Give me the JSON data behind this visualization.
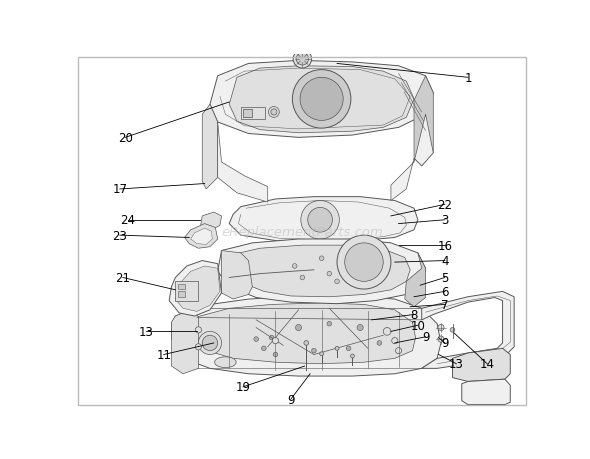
{
  "background_color": "#ffffff",
  "border_color": "#bbbbbb",
  "watermark_text": "eReplacementParts.com",
  "watermark_color": "#bbbbbb",
  "watermark_alpha": 0.55,
  "line_color": "#555555",
  "thin_line": 0.5,
  "med_line": 0.7,
  "label_fontsize": 8.5,
  "label_color": "#000000",
  "fill_light": "#f0f0f0",
  "fill_mid": "#e0e0e0",
  "fill_dark": "#cccccc",
  "figsize": [
    5.9,
    4.6
  ],
  "dpi": 100
}
